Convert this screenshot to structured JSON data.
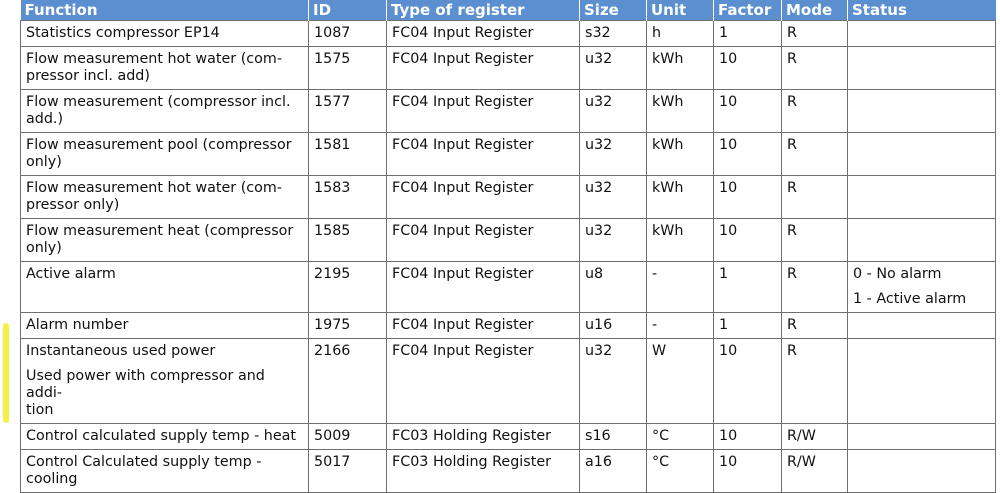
{
  "headers": [
    "Function",
    "ID",
    "Type of register",
    "Size",
    "Unit",
    "Factor",
    "Mode",
    "Status"
  ],
  "rows": [
    {
      "function": [
        "Statistics compressor EP14"
      ],
      "id": "1087",
      "type": "FC04 Input Register",
      "size": "s32",
      "unit": "h",
      "factor": "1",
      "mode": "R",
      "status": []
    },
    {
      "function": [
        "Flow measurement hot water (com-\npressor incl. add)"
      ],
      "id": "1575",
      "type": "FC04 Input Register",
      "size": "u32",
      "unit": "kWh",
      "factor": "10",
      "mode": "R",
      "status": []
    },
    {
      "function": [
        "Flow measurement (compressor incl.\nadd.)"
      ],
      "id": "1577",
      "type": "FC04 Input Register",
      "size": "u32",
      "unit": "kWh",
      "factor": "10",
      "mode": "R",
      "status": []
    },
    {
      "function": [
        "Flow measurement pool (compressor\nonly)"
      ],
      "id": "1581",
      "type": "FC04 Input Register",
      "size": "u32",
      "unit": "kWh",
      "factor": "10",
      "mode": "R",
      "status": []
    },
    {
      "function": [
        "Flow measurement hot water (com-\npressor only)"
      ],
      "id": "1583",
      "type": "FC04 Input Register",
      "size": "u32",
      "unit": "kWh",
      "factor": "10",
      "mode": "R",
      "status": []
    },
    {
      "function": [
        "Flow measurement heat (compressor\nonly)"
      ],
      "id": "1585",
      "type": "FC04 Input Register",
      "size": "u32",
      "unit": "kWh",
      "factor": "10",
      "mode": "R",
      "status": []
    },
    {
      "function": [
        "Active alarm"
      ],
      "id": "2195",
      "type": "FC04 Input Register",
      "size": "u8",
      "unit": "-",
      "factor": "1",
      "mode": "R",
      "status": [
        "0 - No alarm",
        "1 - Active alarm"
      ]
    },
    {
      "function": [
        "Alarm number"
      ],
      "id": "1975",
      "type": "FC04 Input Register",
      "size": "u16",
      "unit": "-",
      "factor": "1",
      "mode": "R",
      "status": []
    },
    {
      "function": [
        "Instantaneous used power",
        "Used power with compressor and addi-\ntion"
      ],
      "id": "2166",
      "type": "FC04 Input Register",
      "size": "u32",
      "unit": "W",
      "factor": "10",
      "mode": "R",
      "status": []
    },
    {
      "function": [
        "Control calculated supply temp - heat"
      ],
      "id": "5009",
      "type": "FC03 Holding Register",
      "size": "s16",
      "unit": "°C",
      "factor": "10",
      "mode": "R/W",
      "status": []
    },
    {
      "function": [
        "Control Calculated supply temp - cooling"
      ],
      "id": "5017",
      "type": "FC03 Holding Register",
      "size": "a16",
      "unit": "°C",
      "factor": "10",
      "mode": "R/W",
      "status": []
    }
  ]
}
